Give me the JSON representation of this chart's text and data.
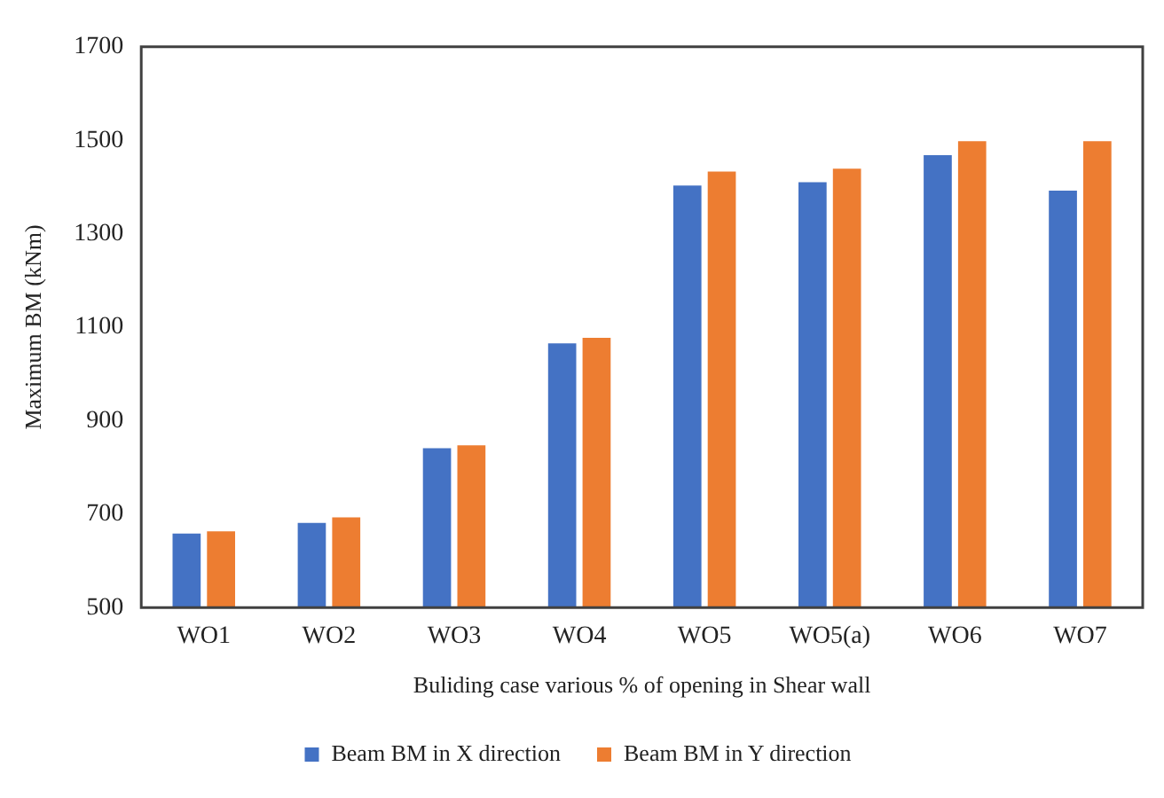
{
  "chart_data": {
    "type": "bar",
    "xlabel": "Buliding case various % of opening in Shear wall",
    "ylabel": "Maximum BM (kNm)",
    "categories": [
      "WO1",
      "WO2",
      "WO3",
      "WO4",
      "WO5",
      "WO5(a)",
      "WO6",
      "WO7"
    ],
    "series": [
      {
        "name": "Beam BM in X direction",
        "color": "#4472c4",
        "values": [
          662,
          685,
          845,
          1069,
          1407,
          1414,
          1472,
          1396
        ]
      },
      {
        "name": "Beam BM in Y direction",
        "color": "#ed7d31",
        "values": [
          667,
          697,
          851,
          1081,
          1437,
          1443,
          1502,
          1502
        ]
      }
    ],
    "ylim": [
      500,
      1700
    ],
    "yticks": [
      500,
      700,
      900,
      1100,
      1300,
      1500,
      1700
    ],
    "grid": false,
    "legend": "bottom"
  }
}
